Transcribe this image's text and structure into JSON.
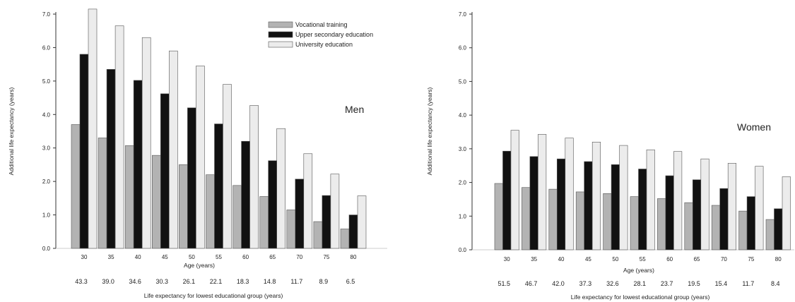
{
  "series_names": [
    "Vocational training",
    "Upper secondary education",
    "University education"
  ],
  "colors": {
    "vocational": "#b3b3b3",
    "upper_secondary": "#111111",
    "university": "#ececec",
    "bar_stroke": "#555555",
    "axis": "#333333"
  },
  "chart_data": [
    {
      "type": "bar",
      "panel_label": "Men",
      "categories": [
        "30",
        "35",
        "40",
        "45",
        "50",
        "55",
        "60",
        "65",
        "70",
        "75",
        "80"
      ],
      "series": [
        {
          "name": "Vocational training",
          "values": [
            3.7,
            3.3,
            3.07,
            2.78,
            2.5,
            2.2,
            1.88,
            1.55,
            1.15,
            0.8,
            0.58
          ]
        },
        {
          "name": "Upper secondary education",
          "values": [
            5.8,
            5.35,
            5.02,
            4.62,
            4.2,
            3.72,
            3.2,
            2.62,
            2.07,
            1.58,
            1.0
          ]
        },
        {
          "name": "University education",
          "values": [
            7.15,
            6.65,
            6.3,
            5.9,
            5.45,
            4.9,
            4.27,
            3.58,
            2.83,
            2.22,
            1.57
          ]
        }
      ],
      "life_expectancy": [
        "43.3",
        "39.0",
        "34.6",
        "30.3",
        "26.1",
        "22.1",
        "18.3",
        "14.8",
        "11.7",
        "8.9",
        "6.5"
      ],
      "ylim": [
        0,
        7
      ],
      "yticks": [
        "0.0",
        "1.0",
        "2.0",
        "3.0",
        "4.0",
        "5.0",
        "6.0",
        "7.0"
      ],
      "xlabel": "Age (years)",
      "ylabel": "Additional life expectancy (years)",
      "le_label": "Life expectancy for lowest educational group (years)",
      "legend": "top-right"
    },
    {
      "type": "bar",
      "panel_label": "Women",
      "categories": [
        "30",
        "35",
        "40",
        "45",
        "50",
        "55",
        "60",
        "65",
        "70",
        "75",
        "80"
      ],
      "series": [
        {
          "name": "Vocational training",
          "values": [
            1.97,
            1.85,
            1.8,
            1.72,
            1.67,
            1.58,
            1.52,
            1.4,
            1.32,
            1.15,
            0.9
          ]
        },
        {
          "name": "Upper secondary education",
          "values": [
            2.93,
            2.77,
            2.7,
            2.62,
            2.53,
            2.4,
            2.2,
            2.08,
            1.82,
            1.58,
            1.22
          ]
        },
        {
          "name": "University education",
          "values": [
            3.55,
            3.43,
            3.32,
            3.2,
            3.1,
            2.97,
            2.92,
            2.7,
            2.57,
            2.48,
            2.17
          ]
        }
      ],
      "life_expectancy": [
        "51.5",
        "46.7",
        "42.0",
        "37.3",
        "32.6",
        "28.1",
        "23.7",
        "19.5",
        "15.4",
        "11.7",
        "8.4"
      ],
      "ylim": [
        0,
        7
      ],
      "yticks": [
        "0.0",
        "1.0",
        "2.0",
        "3.0",
        "4.0",
        "5.0",
        "6.0",
        "7.0"
      ],
      "xlabel": "Age (years)",
      "ylabel": "Additional life expectancy (years)",
      "le_label": "Life expectancy for lowest educational group (years)"
    }
  ]
}
